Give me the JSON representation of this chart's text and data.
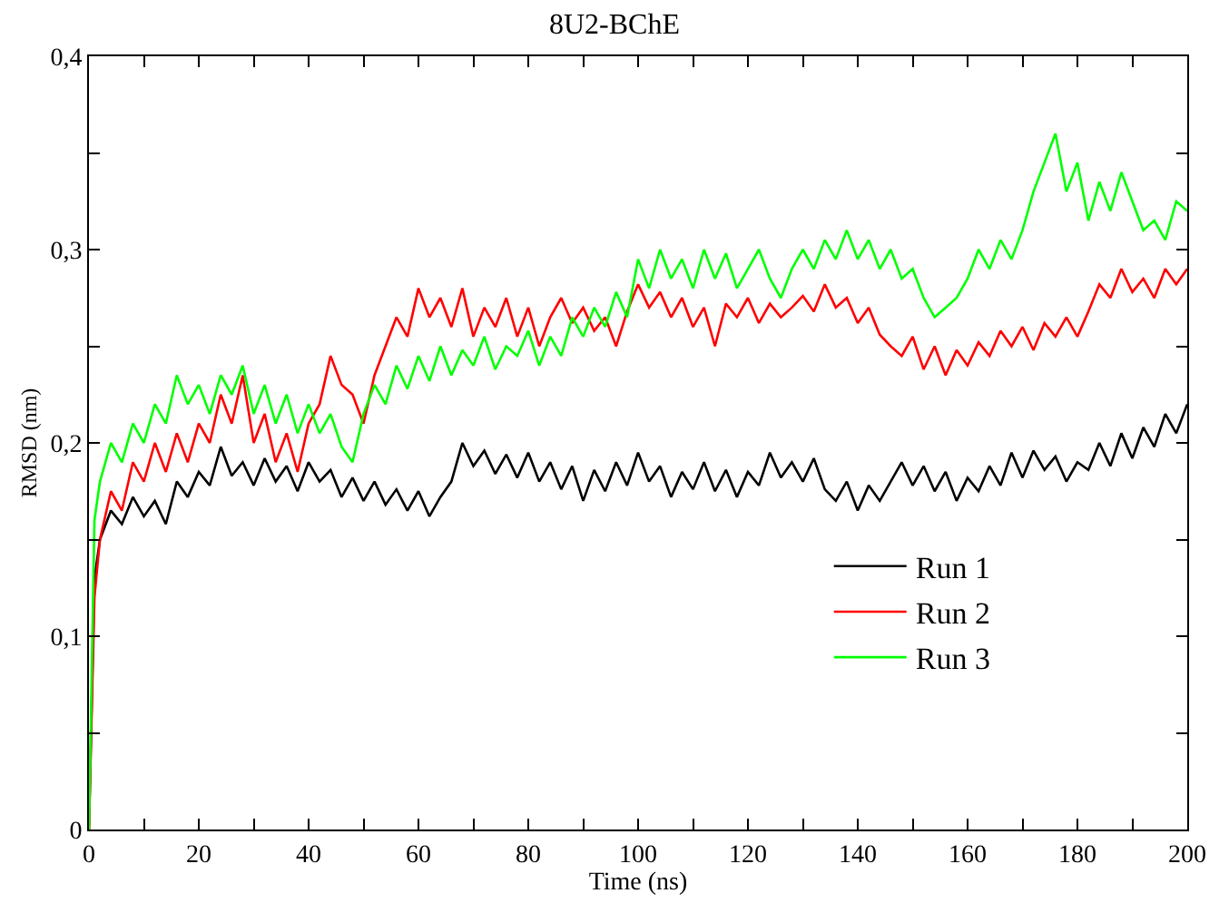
{
  "chart_data": {
    "type": "line",
    "title": "8U2-BChE",
    "xlabel": "Time (ns)",
    "ylabel": "RMSD (nm)",
    "x": [
      0,
      1,
      2,
      4,
      6,
      8,
      10,
      12,
      14,
      16,
      18,
      20,
      22,
      24,
      26,
      28,
      30,
      32,
      34,
      36,
      38,
      40,
      42,
      44,
      46,
      48,
      50,
      52,
      54,
      56,
      58,
      60,
      62,
      64,
      66,
      68,
      70,
      72,
      74,
      76,
      78,
      80,
      82,
      84,
      86,
      88,
      90,
      92,
      94,
      96,
      98,
      100,
      102,
      104,
      106,
      108,
      110,
      112,
      114,
      116,
      118,
      120,
      122,
      124,
      126,
      128,
      130,
      132,
      134,
      136,
      138,
      140,
      142,
      144,
      146,
      148,
      150,
      152,
      154,
      156,
      158,
      160,
      162,
      164,
      166,
      168,
      170,
      172,
      174,
      176,
      178,
      180,
      182,
      184,
      186,
      188,
      190,
      192,
      194,
      196,
      198,
      200
    ],
    "series": [
      {
        "name": "Run 1",
        "color": "#000000",
        "values": [
          0,
          0.13,
          0.15,
          0.165,
          0.158,
          0.172,
          0.162,
          0.17,
          0.158,
          0.18,
          0.172,
          0.185,
          0.178,
          0.198,
          0.183,
          0.19,
          0.178,
          0.192,
          0.18,
          0.188,
          0.175,
          0.19,
          0.18,
          0.186,
          0.172,
          0.182,
          0.17,
          0.18,
          0.168,
          0.176,
          0.165,
          0.175,
          0.162,
          0.172,
          0.18,
          0.2,
          0.188,
          0.196,
          0.184,
          0.194,
          0.182,
          0.195,
          0.18,
          0.19,
          0.176,
          0.188,
          0.17,
          0.186,
          0.175,
          0.19,
          0.178,
          0.195,
          0.18,
          0.188,
          0.172,
          0.185,
          0.176,
          0.19,
          0.175,
          0.186,
          0.172,
          0.185,
          0.178,
          0.195,
          0.182,
          0.19,
          0.18,
          0.192,
          0.176,
          0.17,
          0.18,
          0.165,
          0.178,
          0.17,
          0.18,
          0.19,
          0.178,
          0.188,
          0.175,
          0.185,
          0.17,
          0.182,
          0.175,
          0.188,
          0.178,
          0.195,
          0.182,
          0.196,
          0.186,
          0.193,
          0.18,
          0.19,
          0.186,
          0.2,
          0.188,
          0.205,
          0.192,
          0.208,
          0.198,
          0.215,
          0.205,
          0.22
        ]
      },
      {
        "name": "Run 2",
        "color": "#ff0000",
        "values": [
          0,
          0.12,
          0.15,
          0.175,
          0.165,
          0.19,
          0.18,
          0.2,
          0.185,
          0.205,
          0.19,
          0.21,
          0.2,
          0.225,
          0.21,
          0.235,
          0.2,
          0.215,
          0.19,
          0.205,
          0.185,
          0.21,
          0.22,
          0.245,
          0.23,
          0.225,
          0.21,
          0.235,
          0.25,
          0.265,
          0.255,
          0.28,
          0.265,
          0.275,
          0.26,
          0.28,
          0.255,
          0.27,
          0.26,
          0.275,
          0.255,
          0.27,
          0.25,
          0.265,
          0.275,
          0.262,
          0.27,
          0.258,
          0.265,
          0.25,
          0.268,
          0.282,
          0.27,
          0.278,
          0.265,
          0.275,
          0.26,
          0.27,
          0.25,
          0.272,
          0.265,
          0.275,
          0.262,
          0.272,
          0.265,
          0.27,
          0.276,
          0.268,
          0.282,
          0.27,
          0.275,
          0.262,
          0.27,
          0.256,
          0.25,
          0.245,
          0.255,
          0.238,
          0.25,
          0.235,
          0.248,
          0.24,
          0.252,
          0.245,
          0.258,
          0.25,
          0.26,
          0.248,
          0.262,
          0.255,
          0.265,
          0.255,
          0.268,
          0.282,
          0.275,
          0.29,
          0.278,
          0.285,
          0.275,
          0.29,
          0.282,
          0.29
        ]
      },
      {
        "name": "Run 3",
        "color": "#00ff00",
        "values": [
          0,
          0.16,
          0.18,
          0.2,
          0.19,
          0.21,
          0.2,
          0.22,
          0.21,
          0.235,
          0.22,
          0.23,
          0.215,
          0.235,
          0.225,
          0.24,
          0.215,
          0.23,
          0.21,
          0.225,
          0.205,
          0.22,
          0.205,
          0.215,
          0.198,
          0.19,
          0.215,
          0.23,
          0.22,
          0.24,
          0.228,
          0.245,
          0.232,
          0.25,
          0.235,
          0.248,
          0.24,
          0.255,
          0.238,
          0.25,
          0.245,
          0.258,
          0.24,
          0.255,
          0.245,
          0.265,
          0.255,
          0.27,
          0.26,
          0.278,
          0.265,
          0.295,
          0.28,
          0.3,
          0.285,
          0.295,
          0.28,
          0.3,
          0.285,
          0.298,
          0.28,
          0.29,
          0.3,
          0.285,
          0.275,
          0.29,
          0.3,
          0.29,
          0.305,
          0.295,
          0.31,
          0.295,
          0.305,
          0.29,
          0.3,
          0.285,
          0.29,
          0.275,
          0.265,
          0.27,
          0.275,
          0.285,
          0.3,
          0.29,
          0.305,
          0.295,
          0.31,
          0.33,
          0.345,
          0.36,
          0.33,
          0.345,
          0.315,
          0.335,
          0.32,
          0.34,
          0.325,
          0.31,
          0.315,
          0.305,
          0.325,
          0.32
        ]
      }
    ],
    "xlim": [
      0,
      200
    ],
    "ylim": [
      0,
      0.4
    ],
    "xticks": [
      0,
      {
        "value": 10,
        "label": null
      },
      20,
      {
        "value": 30,
        "label": null
      },
      40,
      {
        "value": 50,
        "label": null
      },
      60,
      {
        "value": 70,
        "label": null
      },
      80,
      {
        "value": 90,
        "label": null
      },
      100,
      {
        "value": 110,
        "label": null
      },
      120,
      {
        "value": 130,
        "label": null
      },
      140,
      {
        "value": 150,
        "label": null
      },
      160,
      {
        "value": 170,
        "label": null
      },
      180,
      {
        "value": 190,
        "label": null
      },
      200
    ],
    "yticks": [
      0,
      {
        "value": 0.05,
        "label": null
      },
      {
        "value": 0.1,
        "label": "0,1"
      },
      {
        "value": 0.15,
        "label": null
      },
      {
        "value": 0.2,
        "label": "0,2"
      },
      {
        "value": 0.25,
        "label": null
      },
      {
        "value": 0.3,
        "label": "0,3"
      },
      {
        "value": 0.35,
        "label": null
      },
      {
        "value": 0.4,
        "label": "0,4"
      }
    ],
    "legend": "bottom right",
    "marker": "none",
    "line_style": "solid"
  }
}
